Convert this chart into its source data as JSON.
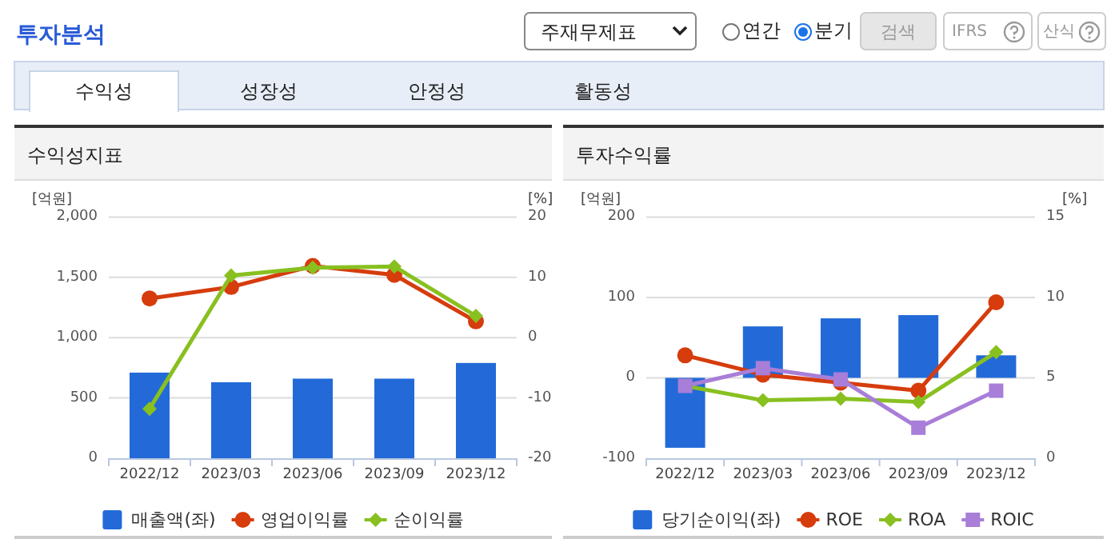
{
  "chart_data": [
    {
      "type": "other",
      "title": "투자분석",
      "annotations": [
        "주재무제표",
        "연간",
        "분기",
        "검색",
        "IFRS",
        "산식",
        "수익성",
        "성장성",
        "안정성",
        "활동성"
      ]
    },
    {
      "type": "bar",
      "title": "수익성지표",
      "ylabel": "[억원]",
      "y2label": "[%]",
      "categories": [
        "2022/12",
        "2023/03",
        "2023/06",
        "2023/09",
        "2023/12"
      ],
      "ylim": [
        0,
        2000
      ],
      "yticks": [
        0,
        500,
        {
          "value": 1000,
          "label": "1,000"
        },
        {
          "value": 1500,
          "label": "1,500"
        },
        {
          "value": 2000,
          "label": "2,000"
        }
      ],
      "y2lim": [
        -20,
        20
      ],
      "y2ticks": [
        -20,
        -10,
        0,
        10,
        20
      ],
      "grid": "y",
      "legend": "bottom",
      "series": [
        {
          "name": "매출액(좌)",
          "type": "bar",
          "color": "#236ad8",
          "values": [
            710,
            630,
            660,
            660,
            790
          ]
        },
        {
          "name": "영업이익률",
          "type": "line",
          "axis": "y2",
          "marker": "circle",
          "color": "#d63c0c",
          "values": [
            6.5,
            8.4,
            11.9,
            10.4,
            2.7
          ]
        },
        {
          "name": "순이익률",
          "type": "line",
          "axis": "y2",
          "marker": "diamond",
          "color": "#88c020",
          "values": [
            -11.8,
            10.3,
            11.6,
            11.8,
            3.6
          ]
        }
      ]
    },
    {
      "type": "bar",
      "title": "투자수익률",
      "ylabel": "[억원]",
      "y2label": "[%]",
      "categories": [
        "2022/12",
        "2023/03",
        "2023/06",
        "2023/09",
        "2023/12"
      ],
      "ylim": [
        -100,
        200
      ],
      "yticks": [
        -100,
        0,
        100,
        200
      ],
      "y2lim": [
        0,
        15
      ],
      "y2ticks": [
        0,
        5,
        10,
        15
      ],
      "grid": "y",
      "legend": "bottom",
      "series": [
        {
          "name": "당기순이익(좌)",
          "type": "bar",
          "color": "#236ad8",
          "values": [
            -87,
            64,
            74,
            78,
            28
          ]
        },
        {
          "name": "ROE",
          "type": "line",
          "axis": "y2",
          "marker": "circle",
          "color": "#d63c0c",
          "values": [
            6.4,
            5.2,
            4.7,
            4.2,
            9.7
          ]
        },
        {
          "name": "ROA",
          "type": "line",
          "axis": "y2",
          "marker": "diamond",
          "color": "#88c020",
          "values": [
            4.5,
            3.6,
            3.7,
            3.5,
            6.6
          ]
        },
        {
          "name": "ROIC",
          "type": "line",
          "axis": "y2",
          "marker": "square",
          "color": "#a87ed8",
          "values": [
            4.5,
            5.6,
            4.9,
            1.9,
            4.2
          ]
        }
      ]
    }
  ]
}
